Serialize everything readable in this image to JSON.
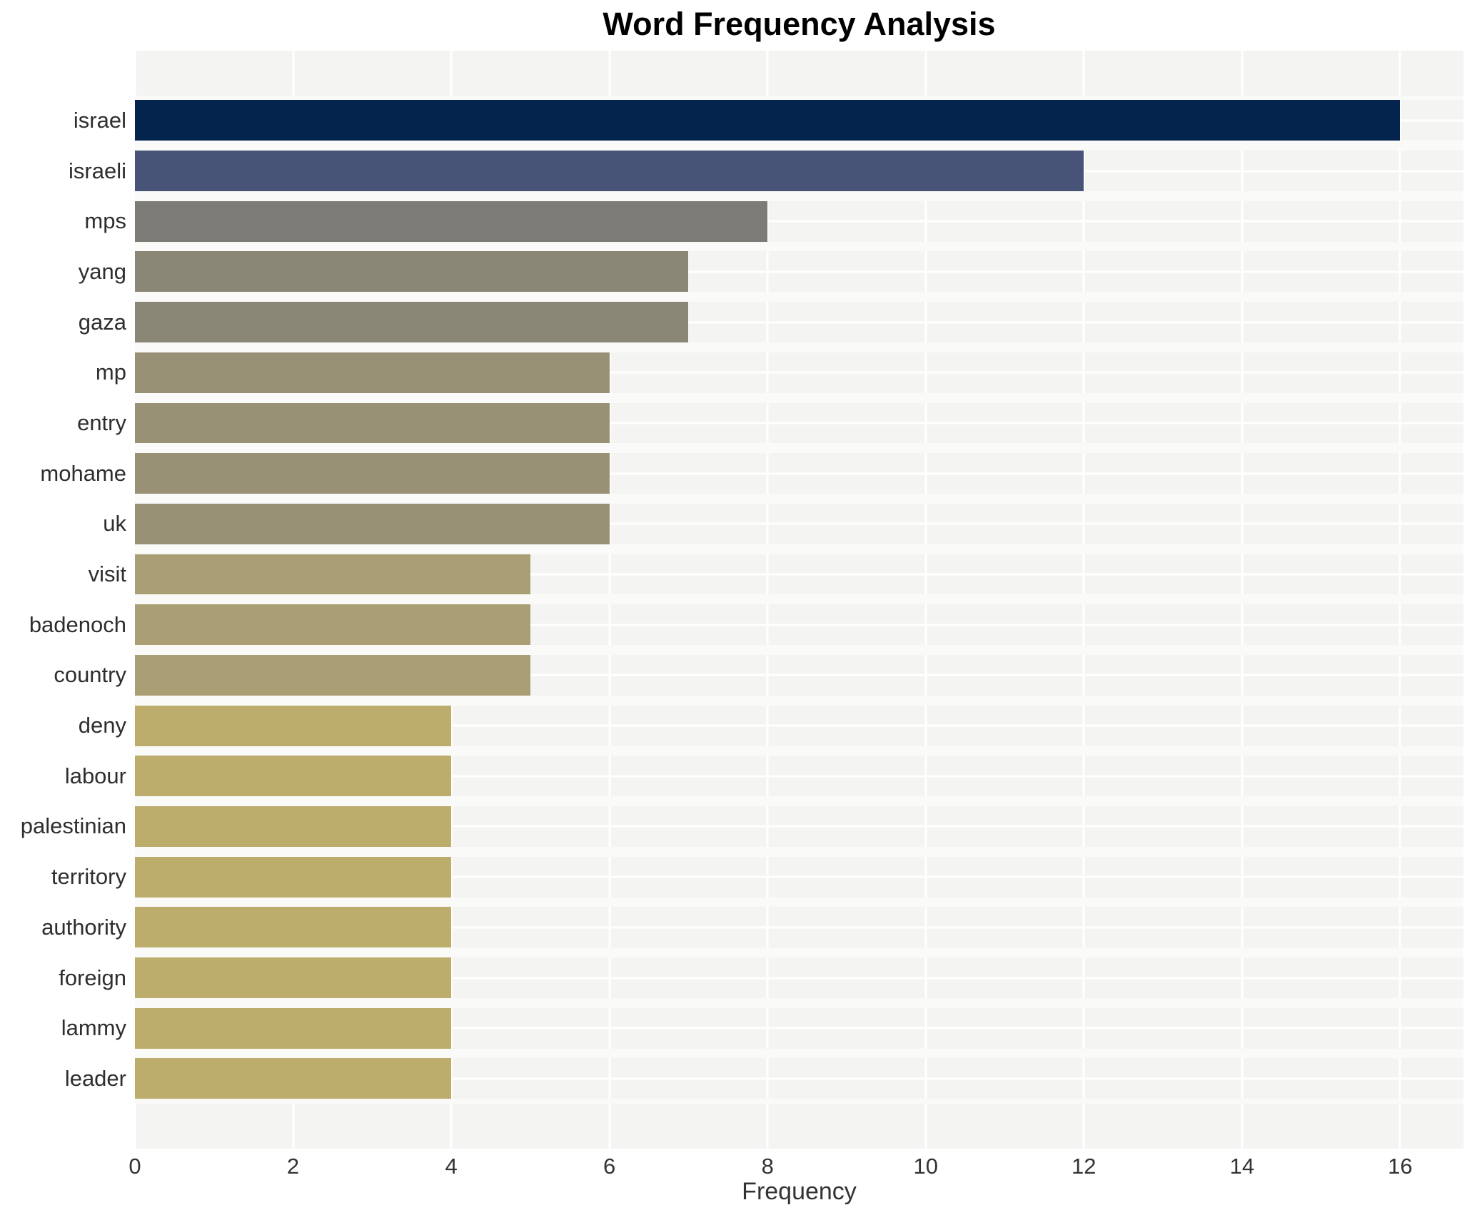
{
  "chart_data": {
    "type": "bar",
    "orientation": "horizontal",
    "title": "Word Frequency Analysis",
    "xlabel": "Frequency",
    "ylabel": "",
    "xlim": [
      0,
      16.8
    ],
    "xticks": [
      0,
      2,
      4,
      6,
      8,
      10,
      12,
      14,
      16
    ],
    "grid": true,
    "legend": false,
    "categories": [
      "israel",
      "israeli",
      "mps",
      "yang",
      "gaza",
      "mp",
      "entry",
      "mohame",
      "uk",
      "visit",
      "badenoch",
      "country",
      "deny",
      "labour",
      "palestinian",
      "territory",
      "authority",
      "foreign",
      "lammy",
      "leader"
    ],
    "values": [
      16,
      12,
      8,
      7,
      7,
      6,
      6,
      6,
      6,
      5,
      5,
      5,
      4,
      4,
      4,
      4,
      4,
      4,
      4,
      4
    ],
    "bar_colors": [
      "#04234d",
      "#475478",
      "#7c7b75",
      "#8b8777",
      "#8b8777",
      "#999175",
      "#999175",
      "#999175",
      "#999175",
      "#a99e74",
      "#a99e74",
      "#a99e74",
      "#bcad6c",
      "#bcad6c",
      "#bcad6c",
      "#bcad6c",
      "#bcad6c",
      "#bcad6c",
      "#bcad6c",
      "#bcad6c"
    ],
    "plot_background": "#f4f4f2",
    "grid_color": "#ffffff"
  }
}
